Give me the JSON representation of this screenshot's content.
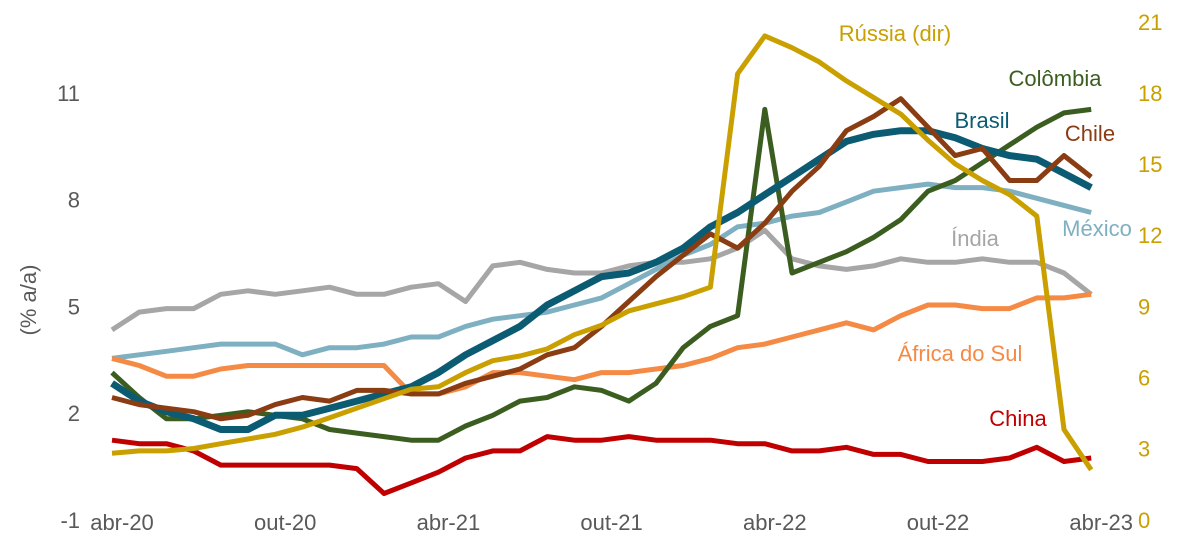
{
  "chart_data": {
    "type": "line",
    "y_label": "(% a/a)",
    "categories": [
      "abr-20",
      null,
      null,
      null,
      null,
      null,
      "out-20",
      null,
      null,
      null,
      null,
      null,
      "abr-21",
      null,
      null,
      null,
      null,
      null,
      "out-21",
      null,
      null,
      null,
      null,
      null,
      "abr-22",
      null,
      null,
      null,
      null,
      null,
      "out-22",
      null,
      null,
      null,
      null,
      null,
      "abr-23"
    ],
    "ylim": [
      -1,
      13
    ],
    "yticks": [
      -1,
      2,
      5,
      8,
      11
    ],
    "y2lim": [
      0,
      21
    ],
    "y2ticks": [
      0,
      3,
      6,
      9,
      12,
      15,
      18,
      21
    ],
    "grid": false,
    "series": [
      {
        "name": "Índia",
        "color": "#a6a6a6",
        "values": [
          4.4,
          4.9,
          5.0,
          5.0,
          5.4,
          5.5,
          5.4,
          5.5,
          5.6,
          5.4,
          5.4,
          5.6,
          5.7,
          5.2,
          6.2,
          6.3,
          6.1,
          6.0,
          6.0,
          6.2,
          6.3,
          6.3,
          6.4,
          6.7,
          7.2,
          6.4,
          6.2,
          6.1,
          6.2,
          6.4,
          6.3,
          6.3,
          6.4,
          6.3,
          6.3,
          6.0,
          5.4
        ]
      },
      {
        "name": "México",
        "color": "#7fb0c1",
        "values": [
          3.6,
          3.7,
          3.8,
          3.9,
          4.0,
          4.0,
          4.0,
          3.7,
          3.9,
          3.9,
          4.0,
          4.2,
          4.2,
          4.5,
          4.7,
          4.8,
          4.9,
          5.1,
          5.3,
          5.7,
          6.1,
          6.5,
          6.8,
          7.3,
          7.4,
          7.6,
          7.7,
          8.0,
          8.3,
          8.4,
          8.5,
          8.4,
          8.4,
          8.3,
          8.1,
          7.9,
          7.7
        ]
      },
      {
        "name": "África do Sul",
        "color": "#f58a45",
        "values": [
          3.6,
          3.4,
          3.1,
          3.1,
          3.3,
          3.4,
          3.4,
          3.4,
          3.4,
          3.4,
          3.4,
          2.6,
          2.6,
          2.8,
          3.2,
          3.2,
          3.1,
          3.0,
          3.2,
          3.2,
          3.3,
          3.4,
          3.6,
          3.9,
          4.0,
          4.2,
          4.4,
          4.6,
          4.4,
          4.8,
          5.1,
          5.1,
          5.0,
          5.0,
          5.3,
          5.3,
          5.4
        ]
      },
      {
        "name": "China",
        "color": "#c00000",
        "values": [
          1.3,
          1.2,
          1.2,
          1.0,
          0.6,
          0.6,
          0.6,
          0.6,
          0.6,
          0.5,
          -0.2,
          0.1,
          0.4,
          0.8,
          1.0,
          1.0,
          1.4,
          1.3,
          1.3,
          1.4,
          1.3,
          1.3,
          1.3,
          1.2,
          1.2,
          1.0,
          1.0,
          1.1,
          0.9,
          0.9,
          0.7,
          0.7,
          0.7,
          0.8,
          1.1,
          0.7,
          0.8
        ]
      },
      {
        "name": "Colômbia",
        "color": "#3b5e20",
        "values": [
          3.2,
          2.5,
          1.9,
          1.9,
          2.0,
          2.1,
          2.0,
          1.9,
          1.6,
          1.5,
          1.4,
          1.3,
          1.3,
          1.7,
          2.0,
          2.4,
          2.5,
          2.8,
          2.7,
          2.4,
          2.9,
          3.9,
          4.5,
          4.8,
          10.6,
          6.0,
          6.3,
          6.6,
          7.0,
          7.5,
          8.3,
          8.6,
          9.1,
          9.6,
          10.1,
          10.5,
          10.6
        ]
      },
      {
        "name": "Brasil",
        "color": "#0b5b73",
        "values": [
          2.9,
          2.4,
          2.1,
          1.9,
          1.6,
          1.6,
          2.0,
          2.0,
          2.2,
          2.4,
          2.6,
          2.8,
          3.2,
          3.7,
          4.1,
          4.5,
          5.1,
          5.5,
          5.9,
          6.0,
          6.3,
          6.7,
          7.3,
          7.7,
          8.2,
          8.7,
          9.2,
          9.7,
          9.9,
          10.0,
          10.0,
          9.8,
          9.5,
          9.3,
          9.2,
          8.8,
          8.4
        ]
      },
      {
        "name": "Chile",
        "color": "#8a3c12",
        "values": [
          2.5,
          2.3,
          2.2,
          2.1,
          1.9,
          2.0,
          2.3,
          2.5,
          2.4,
          2.7,
          2.7,
          2.6,
          2.6,
          2.9,
          3.1,
          3.3,
          3.7,
          3.9,
          4.5,
          5.2,
          5.9,
          6.5,
          7.1,
          6.7,
          7.4,
          8.3,
          9.0,
          10.0,
          10.4,
          10.9,
          10.1,
          9.3,
          9.5,
          8.6,
          8.6,
          9.3,
          8.7
        ]
      },
      {
        "name": "Rússia (dir)",
        "color": "#c9a000",
        "axis": "y2",
        "values": [
          2.9,
          3.0,
          3.0,
          3.1,
          3.3,
          3.5,
          3.7,
          4.0,
          4.4,
          4.8,
          5.2,
          5.6,
          5.7,
          6.3,
          6.8,
          7.0,
          7.3,
          7.9,
          8.3,
          8.9,
          9.2,
          9.5,
          9.9,
          18.9,
          20.5,
          20.0,
          19.4,
          18.6,
          17.9,
          17.2,
          16.1,
          15.1,
          14.4,
          13.8,
          12.9,
          3.9,
          2.2
        ]
      }
    ]
  }
}
